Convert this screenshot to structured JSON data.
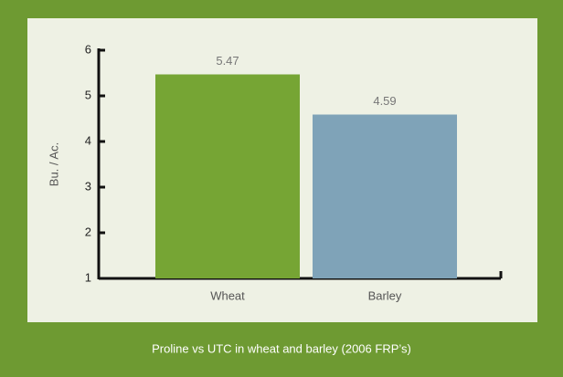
{
  "chart_data": {
    "type": "bar",
    "caption": "Proline vs UTC in wheat and barley (2006 FRP’s)",
    "y_label": "Bu. / Ac.",
    "categories": [
      "Wheat",
      "Barley"
    ],
    "values": [
      5.47,
      4.59
    ],
    "colors": [
      "#76a534",
      "#7fa3b8"
    ],
    "ylim": [
      1,
      6
    ],
    "yticks": [
      1,
      2,
      3,
      4,
      5,
      6
    ]
  }
}
